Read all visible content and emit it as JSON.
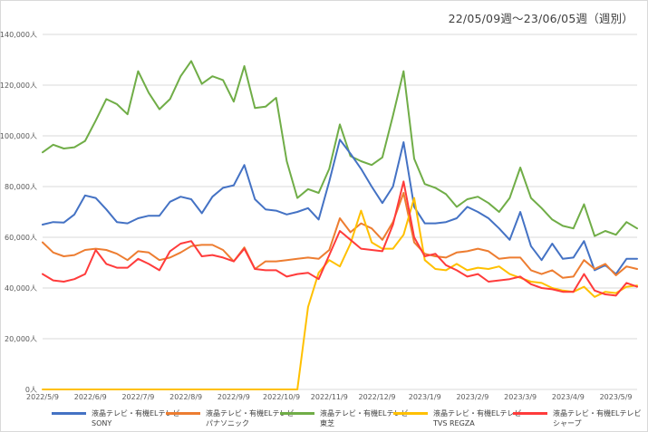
{
  "chart_data": {
    "type": "line",
    "title": "22/05/09週～23/06/05週（週別）",
    "ylim": [
      0,
      140000
    ],
    "y_ticks": [
      "0人",
      "20,000人",
      "40,000人",
      "60,000人",
      "80,000人",
      "100,000人",
      "120,000人",
      "140,000人"
    ],
    "x_ticks": [
      "2022/5/9",
      "2022/6/9",
      "2022/7/9",
      "2022/8/9",
      "2022/9/9",
      "2022/10/9",
      "2022/11/9",
      "2022/12/9",
      "2023/1/9",
      "2023/2/9",
      "2023/3/9",
      "2023/4/9",
      "2023/5/9"
    ],
    "x_tick_index": [
      0,
      4.5,
      9,
      13.5,
      18,
      22.5,
      27,
      31.5,
      36,
      40.5,
      45,
      49.5,
      54
    ],
    "n_points": 57,
    "series": [
      {
        "name": "液晶テレビ・有機ELテレビ",
        "maker": "SONY",
        "color": "#4472c4",
        "values": [
          65000,
          66000,
          65800,
          69000,
          76500,
          75500,
          71000,
          66000,
          65500,
          67500,
          68500,
          68500,
          74000,
          76000,
          75000,
          69500,
          76000,
          79500,
          80500,
          88500,
          75000,
          71000,
          70500,
          69000,
          70000,
          71500,
          67000,
          82000,
          98500,
          93000,
          87000,
          80000,
          73500,
          80000,
          97500,
          72000,
          65500,
          65500,
          66000,
          67500,
          72000,
          70000,
          67500,
          63500,
          59000,
          70000,
          56500,
          51000,
          57500,
          51500,
          52000,
          58500,
          47000,
          49000,
          45500,
          51500,
          51500
        ]
      },
      {
        "name": "液晶テレビ・有機ELテレビ",
        "maker": "パナソニック",
        "color": "#ed7d31",
        "values": [
          58000,
          54000,
          52500,
          53000,
          55000,
          55500,
          55000,
          53500,
          51000,
          54500,
          54000,
          51000,
          52000,
          54000,
          56500,
          57000,
          57000,
          55000,
          50500,
          56000,
          47500,
          50500,
          50500,
          51000,
          51500,
          52000,
          51500,
          55000,
          67500,
          62000,
          65500,
          63500,
          59000,
          66000,
          77500,
          58000,
          53500,
          52500,
          52000,
          54000,
          54500,
          55500,
          54500,
          51500,
          52000,
          52000,
          47000,
          45500,
          47000,
          44000,
          44500,
          51000,
          47500,
          49500,
          45000,
          48500,
          47500
        ]
      },
      {
        "name": "液晶テレビ・有機ELテレビ",
        "maker": "東芝",
        "color": "#70ad47",
        "values": [
          93500,
          96500,
          95000,
          95500,
          98000,
          106000,
          114500,
          112500,
          108500,
          125500,
          117000,
          110500,
          114500,
          123500,
          129500,
          120500,
          123500,
          122000,
          113500,
          127500,
          111000,
          111500,
          115000,
          90000,
          75500,
          79000,
          77500,
          87000,
          104500,
          92000,
          90000,
          88500,
          91500,
          108000,
          125500,
          91000,
          81000,
          79500,
          77000,
          72000,
          75000,
          76000,
          73500,
          70000,
          75500,
          87500,
          75500,
          71500,
          67000,
          64500,
          63500,
          73000,
          60500,
          62500,
          61000,
          66000,
          63500
        ]
      },
      {
        "name": "液晶テレビ・有機ELテレビ",
        "maker": "TVS REGZA",
        "color": "#ffc000",
        "values": [
          0,
          0,
          0,
          0,
          0,
          0,
          0,
          0,
          0,
          0,
          0,
          0,
          0,
          0,
          0,
          0,
          0,
          0,
          0,
          0,
          0,
          0,
          0,
          0,
          0,
          32500,
          46000,
          51000,
          48500,
          57500,
          70500,
          58000,
          55500,
          55500,
          61000,
          75500,
          51000,
          47500,
          47000,
          49500,
          47000,
          48000,
          47500,
          48500,
          45500,
          44000,
          42500,
          42000,
          40000,
          39000,
          38500,
          40500,
          36500,
          38500,
          38000,
          40500,
          41000
        ]
      },
      {
        "name": "液晶テレビ・有機ELテレビ",
        "maker": "シャープ",
        "color": "#ff3b3b",
        "values": [
          45500,
          43000,
          42500,
          43500,
          45500,
          55000,
          49500,
          48000,
          48000,
          51500,
          49500,
          47000,
          54500,
          57500,
          58500,
          52500,
          53000,
          52000,
          50500,
          55500,
          47500,
          47000,
          47000,
          44500,
          45500,
          46000,
          43500,
          53000,
          62500,
          59000,
          55500,
          55000,
          54500,
          65000,
          82000,
          60000,
          52500,
          53500,
          49000,
          47000,
          44500,
          45500,
          42500,
          43000,
          43500,
          44500,
          41500,
          40000,
          39500,
          38500,
          38500,
          45500,
          39000,
          37500,
          37000,
          42000,
          40500
        ]
      }
    ]
  }
}
